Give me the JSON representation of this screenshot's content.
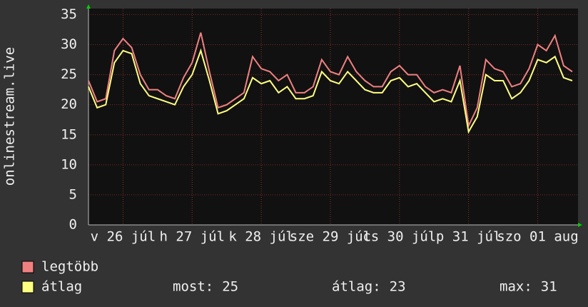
{
  "chart_data": {
    "type": "line",
    "y_label": "onlinestream.live",
    "x": [
      0,
      3,
      6,
      9,
      12,
      15,
      18,
      21,
      24,
      27,
      30,
      33,
      36,
      39,
      42,
      45,
      48,
      51,
      54,
      57,
      60,
      63,
      66,
      69,
      72,
      75,
      78,
      81,
      84,
      87,
      90,
      93,
      96,
      99,
      102,
      105,
      108,
      111,
      114,
      117,
      120,
      123,
      126,
      129,
      132,
      135,
      138,
      141,
      144,
      147,
      150,
      153,
      156,
      159,
      162,
      165,
      168
    ],
    "series": [
      {
        "name": "legtöbb",
        "color": "#f08080",
        "values": [
          24,
          20.5,
          21,
          29,
          31,
          29.5,
          25,
          22.5,
          22.5,
          21.5,
          21,
          24.5,
          27,
          32,
          25.5,
          19.5,
          20,
          21,
          22,
          28,
          26,
          25.5,
          24,
          25,
          22,
          22,
          23,
          27.5,
          25.5,
          25,
          28,
          25.5,
          24,
          23,
          23,
          25.5,
          26.5,
          25,
          25,
          23,
          22,
          22.5,
          22,
          26.5,
          16.5,
          19.5,
          27.5,
          26,
          25.5,
          23,
          23.5,
          26,
          30,
          29,
          31.5,
          26.5,
          25.5
        ]
      },
      {
        "name": "átlag",
        "color": "#ffff80",
        "values": [
          23,
          19.5,
          20,
          27,
          29,
          28.5,
          23.5,
          21.5,
          21,
          20.5,
          20,
          23,
          25,
          29,
          24,
          18.5,
          19,
          20,
          21,
          24.5,
          23.5,
          24,
          22,
          23,
          21,
          21,
          21.5,
          25.5,
          24,
          23.5,
          25.5,
          24,
          22.5,
          22,
          22,
          24,
          24.5,
          23,
          23.5,
          22,
          20.5,
          21,
          20.5,
          24,
          15.5,
          18,
          25,
          24,
          24,
          21,
          22,
          24,
          27.5,
          27,
          28,
          24.5,
          24
        ]
      }
    ],
    "xlim": [
      0,
      170
    ],
    "xticks": [
      {
        "value": 12,
        "label": "v 26 júl"
      },
      {
        "value": 36,
        "label": "h 27 júl"
      },
      {
        "value": 60,
        "label": "k 28 júl"
      },
      {
        "value": 84,
        "label": "sze 29 júl"
      },
      {
        "value": 108,
        "label": "cs 30 júl"
      },
      {
        "value": 132,
        "label": "p 31 júl"
      },
      {
        "value": 156,
        "label": "szo 01 aug"
      }
    ],
    "ylim": [
      0,
      36
    ],
    "yticks": [
      0,
      5,
      10,
      15,
      20,
      25,
      30,
      35
    ],
    "grid": true,
    "stats": [
      {
        "label": "most:",
        "value": 25
      },
      {
        "label": "átlag:",
        "value": 23
      },
      {
        "label": "max:",
        "value": 31
      }
    ]
  }
}
